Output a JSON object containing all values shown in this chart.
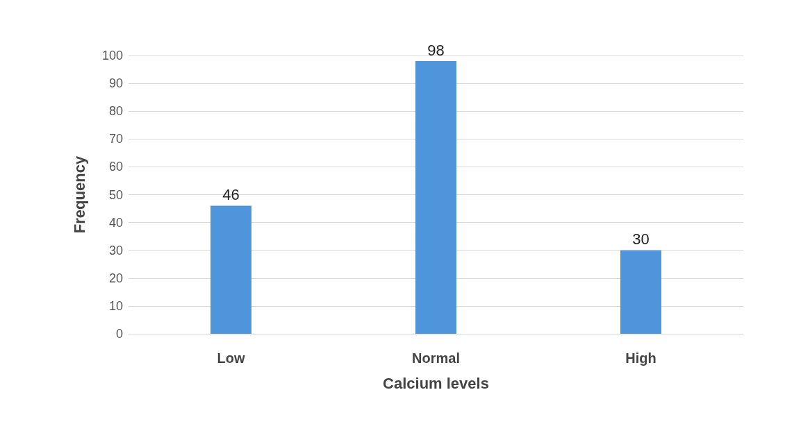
{
  "chart_data": {
    "type": "bar",
    "xlabel": "Calcium levels",
    "ylabel": "Frequency",
    "categories": [
      "Low",
      "Normal",
      "High"
    ],
    "values": [
      46,
      98,
      30
    ],
    "color": "#4f95dc",
    "ylim": [
      0,
      100
    ],
    "yticks": [
      0,
      10,
      20,
      30,
      40,
      50,
      60,
      70,
      80,
      90,
      100
    ],
    "grid": "y",
    "data_labels": true
  }
}
